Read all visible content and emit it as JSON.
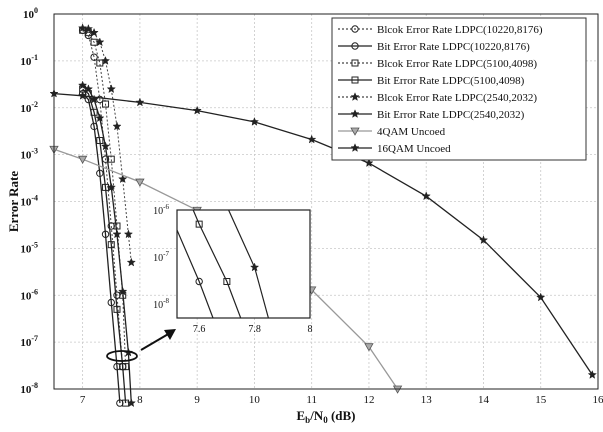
{
  "chart_data": {
    "type": "line",
    "xlabel": "E_b/N_0 (dB)",
    "ylabel": "Error Rate",
    "xlim": [
      6.5,
      16
    ],
    "ylim_log10": [
      -8,
      0
    ],
    "log_scale_y": true,
    "grid": true,
    "legend_position": "top-right",
    "x_ticks": [
      "7",
      "8",
      "9",
      "10",
      "11",
      "12",
      "13",
      "14",
      "15",
      "16"
    ],
    "y_ticks": [
      {
        "base": "10",
        "exp": "0"
      },
      {
        "base": "10",
        "exp": "-1"
      },
      {
        "base": "10",
        "exp": "-2"
      },
      {
        "base": "10",
        "exp": "-3"
      },
      {
        "base": "10",
        "exp": "-4"
      },
      {
        "base": "10",
        "exp": "-5"
      },
      {
        "base": "10",
        "exp": "-6"
      },
      {
        "base": "10",
        "exp": "-7"
      },
      {
        "base": "10",
        "exp": "-8"
      }
    ],
    "series": [
      {
        "name": "Blcok Error Rate LDPC(10220,8176)",
        "marker": "circle",
        "style": "dotted",
        "points": [
          [
            7.0,
            0.45
          ],
          [
            7.1,
            0.35
          ],
          [
            7.2,
            0.12
          ],
          [
            7.3,
            0.015
          ],
          [
            7.4,
            0.0008
          ],
          [
            7.5,
            3e-05
          ],
          [
            7.6,
            1e-06
          ],
          [
            7.7,
            3e-08
          ]
        ]
      },
      {
        "name": "Bit Error Rate LDPC(10220,8176)",
        "marker": "circle",
        "style": "solid",
        "points": [
          [
            7.0,
            0.02
          ],
          [
            7.1,
            0.015
          ],
          [
            7.2,
            0.004
          ],
          [
            7.3,
            0.0004
          ],
          [
            7.4,
            2e-05
          ],
          [
            7.5,
            7e-07
          ],
          [
            7.6,
            3e-08
          ],
          [
            7.65,
            5e-09
          ]
        ]
      },
      {
        "name": "Blcok Error Rate LDPC(5100,4098)",
        "marker": "square",
        "style": "dotted",
        "points": [
          [
            7.0,
            0.45
          ],
          [
            7.1,
            0.4
          ],
          [
            7.2,
            0.25
          ],
          [
            7.3,
            0.09
          ],
          [
            7.4,
            0.012
          ],
          [
            7.5,
            0.0008
          ],
          [
            7.6,
            3e-05
          ],
          [
            7.7,
            1e-06
          ],
          [
            7.75,
            3e-08
          ]
        ]
      },
      {
        "name": "Bit Error Rate LDPC(5100,4098)",
        "marker": "square",
        "style": "solid",
        "points": [
          [
            7.0,
            0.025
          ],
          [
            7.1,
            0.02
          ],
          [
            7.2,
            0.008
          ],
          [
            7.3,
            0.002
          ],
          [
            7.4,
            0.0002
          ],
          [
            7.5,
            1.2e-05
          ],
          [
            7.6,
            5e-07
          ],
          [
            7.7,
            3e-08
          ],
          [
            7.75,
            5e-09
          ]
        ]
      },
      {
        "name": "Blcok Error Rate LDPC(2540,2032)",
        "marker": "star",
        "style": "dotted",
        "points": [
          [
            7.0,
            0.5
          ],
          [
            7.1,
            0.48
          ],
          [
            7.2,
            0.4
          ],
          [
            7.3,
            0.25
          ],
          [
            7.4,
            0.1
          ],
          [
            7.5,
            0.025
          ],
          [
            7.6,
            0.004
          ],
          [
            7.7,
            0.0003
          ],
          [
            7.8,
            2e-05
          ],
          [
            7.85,
            5e-06
          ]
        ]
      },
      {
        "name": "Bit Error Rate LDPC(2540,2032)",
        "marker": "star",
        "style": "solid",
        "points": [
          [
            7.0,
            0.03
          ],
          [
            7.1,
            0.025
          ],
          [
            7.2,
            0.015
          ],
          [
            7.3,
            0.006
          ],
          [
            7.4,
            0.0015
          ],
          [
            7.5,
            0.0002
          ],
          [
            7.6,
            2e-05
          ],
          [
            7.7,
            1.2e-06
          ],
          [
            7.8,
            6e-08
          ],
          [
            7.85,
            5e-09
          ]
        ]
      },
      {
        "name": "4QAM Uncoed",
        "marker": "triangle-down",
        "style": "solid",
        "points": [
          [
            6.5,
            0.0013
          ],
          [
            7,
            0.0008
          ],
          [
            8,
            0.00026
          ],
          [
            9,
            6.5e-05
          ],
          [
            10,
            1.2e-05
          ],
          [
            11,
            1.3e-06
          ],
          [
            12,
            8e-08
          ],
          [
            12.5,
            1e-08
          ]
        ]
      },
      {
        "name": "16QAM Uncoed",
        "marker": "star",
        "style": "solid",
        "points": [
          [
            6.5,
            0.02
          ],
          [
            7,
            0.018
          ],
          [
            8,
            0.013
          ],
          [
            9,
            0.0087
          ],
          [
            10,
            0.005
          ],
          [
            11,
            0.0021
          ],
          [
            12,
            0.00066
          ],
          [
            13,
            0.00013
          ],
          [
            14,
            1.5e-05
          ],
          [
            15,
            9e-07
          ],
          [
            15.9,
            2e-08
          ]
        ]
      }
    ],
    "inset": {
      "x_ticks": [
        "7.6",
        "7.8",
        "8"
      ],
      "y_ticks": [
        {
          "base": "10",
          "exp": "-6"
        },
        {
          "base": "10",
          "exp": "-7"
        },
        {
          "base": "10",
          "exp": "-8"
        }
      ],
      "xlim": [
        7.52,
        8.0
      ],
      "ylim_log10": [
        -8.3,
        -6.0
      ]
    }
  },
  "icons": {
    "zoom_arrow": "arrow-icon"
  }
}
